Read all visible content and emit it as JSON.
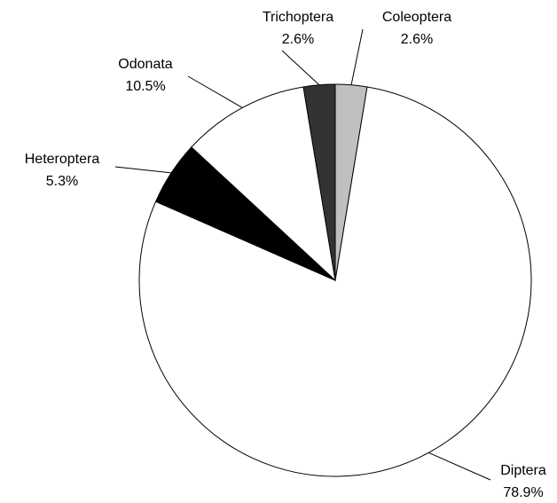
{
  "chart_data": {
    "type": "pie",
    "categories": [
      "Coleoptera",
      "Diptera",
      "Heteroptera",
      "Odonata",
      "Trichoptera"
    ],
    "values": [
      2.6,
      78.9,
      5.3,
      10.5,
      2.6
    ],
    "value_labels": [
      "2.6%",
      "78.9%",
      "5.3%",
      "10.5%",
      "2.6%"
    ],
    "colors": [
      "#c0c0c0",
      "#ffffff",
      "#000000",
      "#ffffff",
      "#333333"
    ]
  }
}
